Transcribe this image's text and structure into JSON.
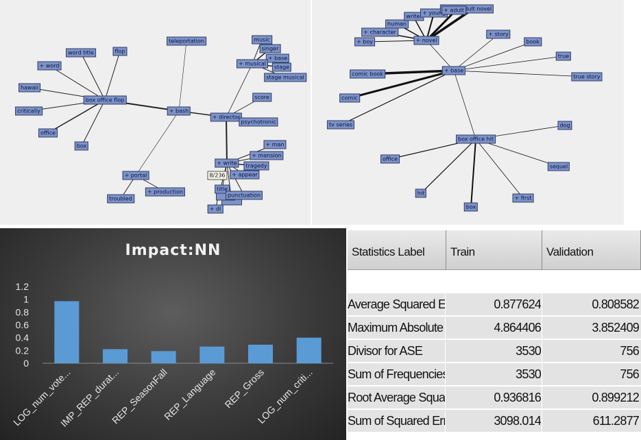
{
  "network_left": {
    "nodes": {
      "box_office_flop": "box office flop",
      "word_title": "word title",
      "flop": "flop",
      "word": "+ word",
      "hawaii": "hawaii",
      "critically": "critically",
      "office": "office",
      "box": "box",
      "bash": "+ bash",
      "teleportation": "teleportation",
      "director": "+ director",
      "music": "music",
      "singer": "singer",
      "base": "+ base",
      "musical": "+ musical",
      "stage": "stage",
      "stage_musical": "stage musical",
      "score": "score",
      "psychotronic": "psychotronic",
      "man": "+ man",
      "mansion": "+ mansion",
      "write": "+ write",
      "tragedy": "tragedy",
      "appear": "+ appear",
      "title": "title",
      "punctuation": "punctuation",
      "di": "+ di",
      "portal": "+ portal",
      "production": "+ production",
      "troubled": "troubled",
      "counter": "8/236"
    }
  },
  "network_right": {
    "nodes": {
      "human": "human",
      "writer": "writer",
      "young": "+ young",
      "adult": "+ adult",
      "adult_novel": "young adult novel",
      "character": "+ character",
      "boy": "+ boy",
      "novel": "+ novel",
      "story": "+ story",
      "book": "book",
      "true": "true",
      "comic_book": "comic book",
      "base": "+ base",
      "true_story": "true story",
      "comic": "comic",
      "tv_series": "tv series",
      "box_office_hit": "box office hit",
      "dog": "dog",
      "office": "office",
      "sequel": "sequel",
      "hit": "hit",
      "first": "+ first",
      "box": "box"
    }
  },
  "chart_data": {
    "type": "bar",
    "title": "Impact:NN",
    "categories": [
      "LOG_num_vote...",
      "IMP_REP_durat...",
      "REP_SeasonFall",
      "REP_Language",
      "REP_Gross",
      "LOG_num_criti..."
    ],
    "values": [
      0.97,
      0.22,
      0.19,
      0.26,
      0.29,
      0.4
    ],
    "yticks": [
      "1.2",
      "1",
      "0.8",
      "0.6",
      "0.4",
      "0.2",
      "0"
    ],
    "ylim": [
      0,
      1.2
    ],
    "bar_color": "#5b9bd5",
    "grid": false,
    "legend": "none"
  },
  "stats_table": {
    "headers": [
      "Statistics Label",
      "Train",
      "Validation"
    ],
    "rows": [
      {
        "label": "Average Squared Error",
        "train": "0.877624",
        "validation": "0.808582"
      },
      {
        "label": "Maximum Absolute Err...",
        "train": "4.864406",
        "validation": "3.852409"
      },
      {
        "label": "Divisor for ASE",
        "train": "3530",
        "validation": "756"
      },
      {
        "label": "Sum of Frequencies",
        "train": "3530",
        "validation": "756"
      },
      {
        "label": "Root Average Squared...",
        "train": "0.936816",
        "validation": "0.899212"
      },
      {
        "label": "Sum of Squared Errors",
        "train": "3098.014",
        "validation": "611.2877"
      }
    ]
  }
}
